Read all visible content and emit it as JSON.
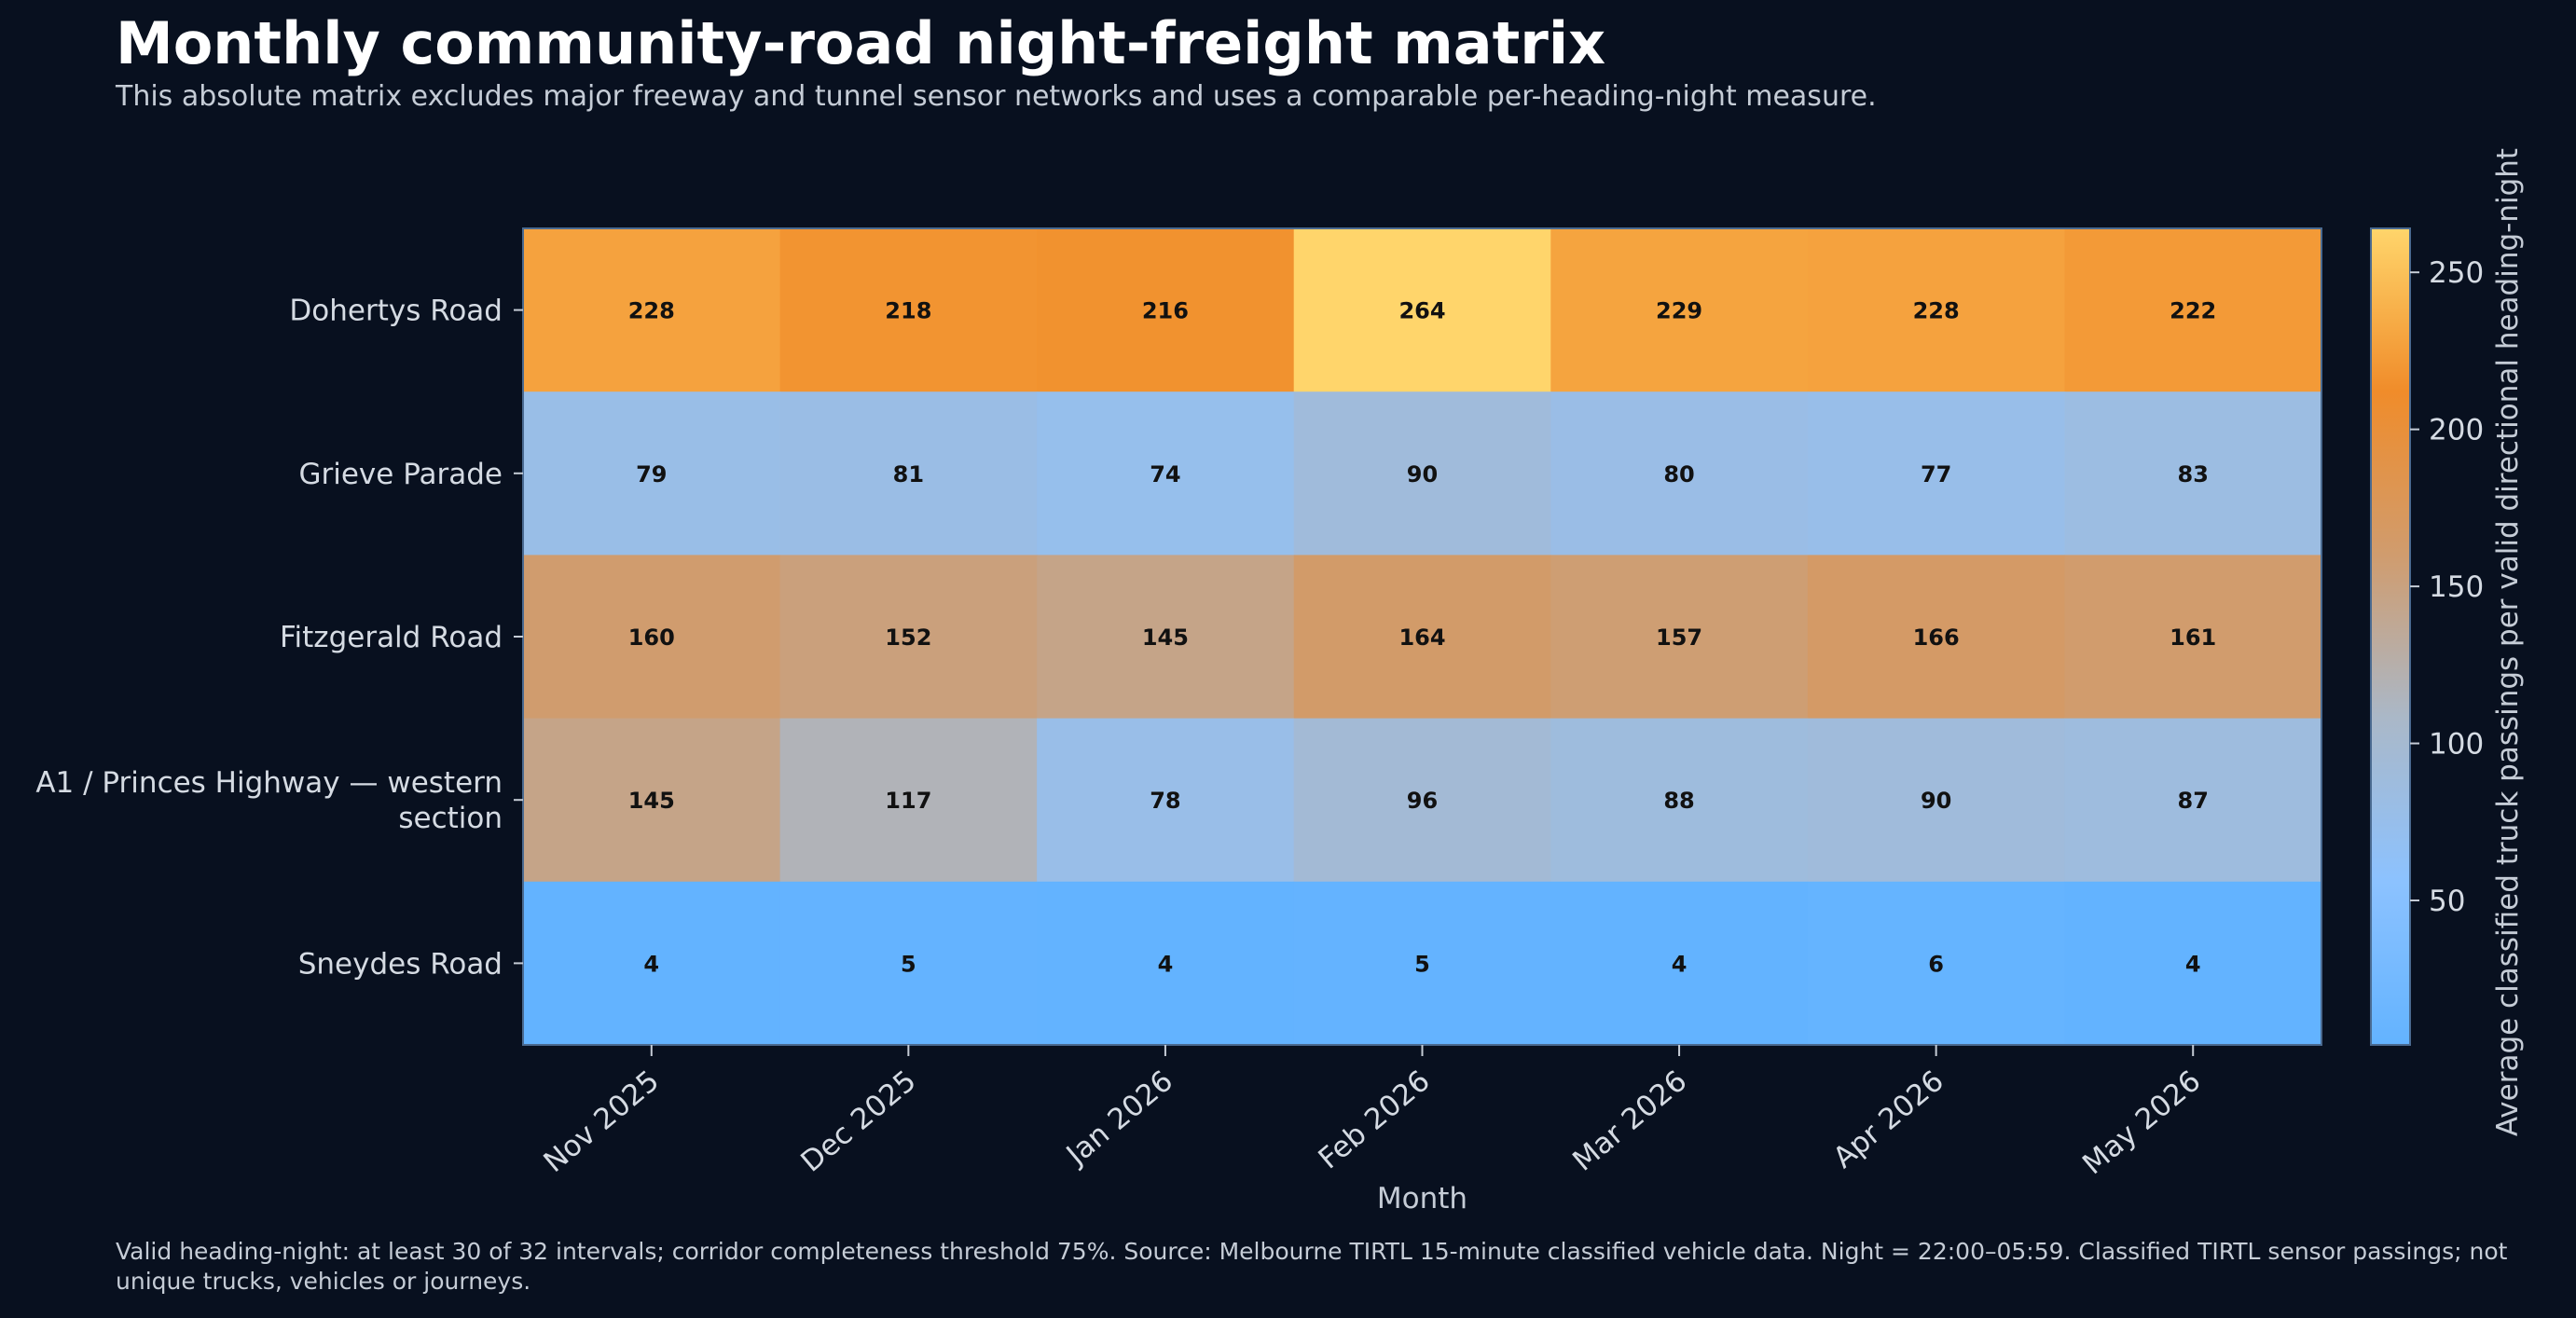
{
  "title": "Monthly community-road night-freight matrix",
  "subtitle": "This absolute matrix excludes major freeway and tunnel sensor networks and uses a comparable per-heading-night measure.",
  "footnote": "Valid heading-night: at least 30 of 32 intervals; corridor completeness threshold 75%. Source: Melbourne TIRTL 15-minute classified vehicle data. Night = 22:00–05:59. Classified TIRTL sensor passings; not unique trucks, vehicles or journeys.",
  "chart_data": {
    "type": "heatmap",
    "x_categories": [
      "Nov 2025",
      "Dec 2025",
      "Jan 2026",
      "Feb 2026",
      "Mar 2026",
      "Apr 2026",
      "May 2026"
    ],
    "y_categories": [
      [
        "Dohertys Road"
      ],
      [
        "Grieve Parade"
      ],
      [
        "Fitzgerald Road"
      ],
      [
        "A1 / Princes Highway — western",
        "section"
      ],
      [
        "Sneydes Road"
      ]
    ],
    "values": [
      [
        228,
        218,
        216,
        264,
        229,
        228,
        222
      ],
      [
        79,
        81,
        74,
        90,
        80,
        77,
        83
      ],
      [
        160,
        152,
        145,
        164,
        157,
        166,
        161
      ],
      [
        145,
        117,
        78,
        96,
        88,
        90,
        87
      ],
      [
        4,
        5,
        4,
        5,
        4,
        6,
        4
      ]
    ],
    "xlabel": "Month",
    "colorbar": {
      "label": "Average classified truck passings per valid directional heading-night",
      "ticks": [
        50,
        100,
        150,
        200,
        250
      ],
      "range": [
        4,
        264
      ],
      "colors": [
        "#63b3ff",
        "#8cc2ff",
        "#aab8c8",
        "#d09c6e",
        "#f08c2a",
        "#ffd56b"
      ]
    }
  }
}
